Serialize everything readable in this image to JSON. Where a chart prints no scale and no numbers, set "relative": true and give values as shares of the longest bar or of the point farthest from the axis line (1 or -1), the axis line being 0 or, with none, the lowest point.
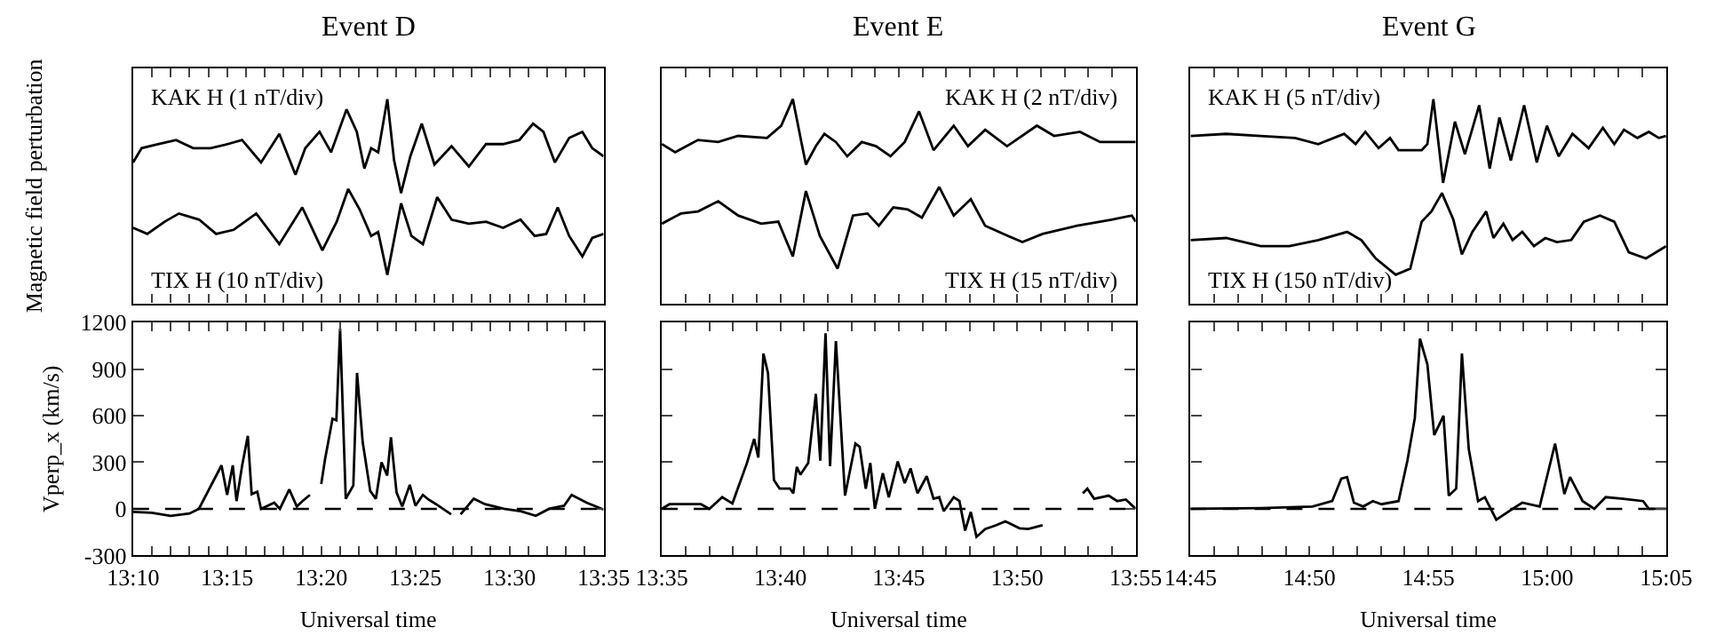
{
  "chart_data": [
    {
      "type": "line",
      "title": "Event D",
      "ylabel": "Magnetic field perturbation",
      "relative": true,
      "tick_labels": false,
      "xlim": [
        13.1667,
        13.5833
      ],
      "xticks": [
        {
          "value": 13.1667,
          "label": null
        },
        {
          "value": 13.1833,
          "label": null
        },
        {
          "value": 13.2,
          "label": null
        },
        {
          "value": 13.2167,
          "label": null
        },
        {
          "value": 13.2333,
          "label": null
        },
        {
          "value": 13.25,
          "label": null
        },
        {
          "value": 13.2667,
          "label": null
        },
        {
          "value": 13.2833,
          "label": null
        },
        {
          "value": 13.3,
          "label": null
        },
        {
          "value": 13.3167,
          "label": null
        },
        {
          "value": 13.3333,
          "label": null
        },
        {
          "value": 13.35,
          "label": null
        },
        {
          "value": 13.3667,
          "label": null
        },
        {
          "value": 13.3833,
          "label": null
        },
        {
          "value": 13.4,
          "label": null
        },
        {
          "value": 13.4167,
          "label": null
        },
        {
          "value": 13.4333,
          "label": null
        },
        {
          "value": 13.45,
          "label": null
        },
        {
          "value": 13.4667,
          "label": null
        },
        {
          "value": 13.4833,
          "label": null
        },
        {
          "value": 13.5,
          "label": null
        },
        {
          "value": 13.5167,
          "label": null
        },
        {
          "value": 13.5333,
          "label": null
        },
        {
          "value": 13.55,
          "label": null
        },
        {
          "value": 13.5667,
          "label": null
        },
        {
          "value": 13.5833,
          "label": null
        }
      ],
      "series": [
        {
          "name": "KAK H (1 nT/div)",
          "color": "#000000",
          "x": [
            13.1667,
            13.1743,
            13.1895,
            13.2048,
            13.22,
            13.2353,
            13.2505,
            13.2632,
            13.28,
            13.2962,
            13.3105,
            13.3192,
            13.3318,
            13.342,
            13.3557,
            13.3648,
            13.3715,
            13.3775,
            13.3837,
            13.3918,
            13.3978,
            13.404,
            13.4122,
            13.4223,
            13.4335,
            13.4487,
            13.464,
            13.4792,
            13.4943,
            13.5087,
            13.5208,
            13.53,
            13.5402,
            13.5528,
            13.5645,
            13.5732,
            13.5833
          ],
          "values": [
            0.69,
            0.76,
            0.78,
            0.8,
            0.76,
            0.76,
            0.78,
            0.8,
            0.69,
            0.83,
            0.63,
            0.76,
            0.84,
            0.74,
            0.95,
            0.84,
            0.66,
            0.76,
            0.74,
            1.0,
            0.7,
            0.54,
            0.72,
            0.88,
            0.68,
            0.77,
            0.67,
            0.78,
            0.78,
            0.8,
            0.88,
            0.84,
            0.69,
            0.81,
            0.84,
            0.76,
            0.72
          ]
        },
        {
          "name": "TIX H (10 nT/div)",
          "color": "#000000",
          "x": [
            13.1667,
            13.1793,
            13.1947,
            13.2073,
            13.2252,
            13.2403,
            13.2557,
            13.2758,
            13.2962,
            13.3165,
            13.3343,
            13.347,
            13.3572,
            13.3673,
            13.3775,
            13.3837,
            13.3918,
            13.404,
            13.4132,
            13.4233,
            13.436,
            13.4487,
            13.464,
            13.4792,
            13.4943,
            13.5097,
            13.5223,
            13.5325,
            13.5427,
            13.5528,
            13.5645,
            13.5732,
            13.5833
          ],
          "values": [
            0.37,
            0.34,
            0.4,
            0.44,
            0.41,
            0.34,
            0.36,
            0.44,
            0.29,
            0.47,
            0.26,
            0.4,
            0.56,
            0.46,
            0.33,
            0.35,
            0.14,
            0.49,
            0.33,
            0.29,
            0.52,
            0.41,
            0.39,
            0.4,
            0.37,
            0.41,
            0.33,
            0.34,
            0.47,
            0.33,
            0.23,
            0.32,
            0.34
          ]
        }
      ]
    },
    {
      "type": "line",
      "title": "Event E",
      "relative": true,
      "tick_labels": false,
      "xlim": [
        13.5833,
        13.9167
      ],
      "xticks": [
        {
          "value": 13.5833,
          "label": null
        },
        {
          "value": 13.6,
          "label": null
        },
        {
          "value": 13.6167,
          "label": null
        },
        {
          "value": 13.6333,
          "label": null
        },
        {
          "value": 13.65,
          "label": null
        },
        {
          "value": 13.6667,
          "label": null
        },
        {
          "value": 13.6833,
          "label": null
        },
        {
          "value": 13.7,
          "label": null
        },
        {
          "value": 13.7167,
          "label": null
        },
        {
          "value": 13.7333,
          "label": null
        },
        {
          "value": 13.75,
          "label": null
        },
        {
          "value": 13.7667,
          "label": null
        },
        {
          "value": 13.7833,
          "label": null
        },
        {
          "value": 13.8,
          "label": null
        },
        {
          "value": 13.8167,
          "label": null
        },
        {
          "value": 13.8333,
          "label": null
        },
        {
          "value": 13.85,
          "label": null
        },
        {
          "value": 13.8667,
          "label": null
        },
        {
          "value": 13.8833,
          "label": null
        },
        {
          "value": 13.9,
          "label": null
        },
        {
          "value": 13.9167,
          "label": null
        }
      ],
      "series": [
        {
          "name": "KAK H (2 nT/div)",
          "color": "#000000",
          "x": [
            13.5833,
            13.5927,
            13.6088,
            13.623,
            13.637,
            13.6573,
            13.6673,
            13.6755,
            13.6815,
            13.6847,
            13.6917,
            13.6977,
            13.7058,
            13.7138,
            13.724,
            13.734,
            13.7442,
            13.7542,
            13.7643,
            13.7745,
            13.7887,
            13.7987,
            13.8108,
            13.8262,
            13.8472,
            13.8593,
            13.8775,
            13.8917,
            13.9167
          ],
          "values": [
            0.78,
            0.74,
            0.8,
            0.79,
            0.82,
            0.81,
            0.87,
            1.0,
            0.79,
            0.68,
            0.77,
            0.83,
            0.79,
            0.72,
            0.79,
            0.77,
            0.72,
            0.79,
            0.94,
            0.75,
            0.87,
            0.77,
            0.85,
            0.77,
            0.87,
            0.82,
            0.84,
            0.79,
            0.79
          ]
        },
        {
          "name": "TIX H (15 nT/div)",
          "color": "#000000",
          "x": [
            13.5833,
            13.5967,
            13.6088,
            13.623,
            13.637,
            13.6532,
            13.6653,
            13.6755,
            13.6847,
            13.6945,
            13.707,
            13.7178,
            13.728,
            13.736,
            13.7462,
            13.7563,
            13.7663,
            13.7785,
            13.7887,
            13.8007,
            13.8108,
            13.827,
            13.837,
            13.8512,
            13.8755,
            13.8997,
            13.914,
            13.9167
          ],
          "values": [
            0.39,
            0.44,
            0.45,
            0.5,
            0.43,
            0.39,
            0.4,
            0.23,
            0.55,
            0.33,
            0.17,
            0.43,
            0.44,
            0.38,
            0.47,
            0.46,
            0.42,
            0.57,
            0.43,
            0.51,
            0.38,
            0.33,
            0.3,
            0.34,
            0.38,
            0.41,
            0.43,
            0.4
          ]
        }
      ]
    },
    {
      "type": "line",
      "title": "Event G",
      "relative": true,
      "tick_labels": false,
      "xlim": [
        14.75,
        15.0833
      ],
      "xticks": [
        {
          "value": 14.75,
          "label": null
        },
        {
          "value": 14.7667,
          "label": null
        },
        {
          "value": 14.7833,
          "label": null
        },
        {
          "value": 14.8,
          "label": null
        },
        {
          "value": 14.8167,
          "label": null
        },
        {
          "value": 14.8333,
          "label": null
        },
        {
          "value": 14.85,
          "label": null
        },
        {
          "value": 14.8667,
          "label": null
        },
        {
          "value": 14.8833,
          "label": null
        },
        {
          "value": 14.9,
          "label": null
        },
        {
          "value": 14.9167,
          "label": null
        },
        {
          "value": 14.9333,
          "label": null
        },
        {
          "value": 14.95,
          "label": null
        },
        {
          "value": 14.9667,
          "label": null
        },
        {
          "value": 14.9833,
          "label": null
        },
        {
          "value": 15,
          "label": null
        },
        {
          "value": 15.0167,
          "label": null
        },
        {
          "value": 15.0333,
          "label": null
        },
        {
          "value": 15.05,
          "label": null
        },
        {
          "value": 15.0667,
          "label": null
        },
        {
          "value": 15.0833,
          "label": null
        }
      ],
      "series": [
        {
          "name": "KAK H (5 nT/div)",
          "color": "#000000",
          "x": [
            14.75,
            14.775,
            14.7992,
            14.8233,
            14.8395,
            14.8577,
            14.8657,
            14.8725,
            14.8818,
            14.8898,
            14.8958,
            14.912,
            14.916,
            14.9202,
            14.927,
            14.9353,
            14.9423,
            14.9523,
            14.9597,
            14.9665,
            14.9745,
            14.9838,
            14.9927,
            14.9998,
            15.008,
            15.0177,
            15.029,
            15.039,
            15.047,
            15.0538,
            15.0632,
            15.0712,
            15.0782,
            15.0833
          ],
          "values": [
            0.82,
            0.83,
            0.82,
            0.81,
            0.78,
            0.83,
            0.78,
            0.84,
            0.76,
            0.81,
            0.75,
            0.75,
            0.78,
            1.0,
            0.59,
            0.89,
            0.73,
            0.97,
            0.66,
            0.91,
            0.7,
            0.97,
            0.69,
            0.87,
            0.72,
            0.83,
            0.76,
            0.86,
            0.78,
            0.85,
            0.81,
            0.84,
            0.81,
            0.82
          ]
        },
        {
          "name": "TIX H (150 nT/div)",
          "color": "#000000",
          "x": [
            14.75,
            14.775,
            14.7992,
            14.8193,
            14.8395,
            14.8597,
            14.8697,
            14.8798,
            14.8938,
            14.904,
            14.912,
            14.9188,
            14.9262,
            14.9342,
            14.9402,
            14.9475,
            14.9572,
            14.9623,
            14.9693,
            14.9757,
            14.9825,
            14.9907,
            14.9987,
            15.0068,
            15.0168,
            15.0257,
            15.037,
            15.047,
            15.0572,
            15.0692,
            15.0833
          ],
          "values": [
            0.31,
            0.32,
            0.28,
            0.28,
            0.31,
            0.35,
            0.31,
            0.22,
            0.14,
            0.17,
            0.4,
            0.45,
            0.54,
            0.41,
            0.24,
            0.35,
            0.45,
            0.32,
            0.39,
            0.31,
            0.35,
            0.28,
            0.32,
            0.3,
            0.31,
            0.4,
            0.43,
            0.4,
            0.25,
            0.22,
            0.28
          ]
        }
      ]
    },
    {
      "type": "line",
      "xlabel": "Universal time",
      "ylabel": "Vperp_x (km/s)",
      "xlim": [
        13.1667,
        13.5833
      ],
      "ylim": [
        -300,
        1200
      ],
      "yticks": [
        -300,
        0,
        300,
        600,
        900,
        1200
      ],
      "xticks": [
        {
          "value": 13.1667,
          "label": "13:10"
        },
        {
          "value": 13.1833,
          "label": null
        },
        {
          "value": 13.2,
          "label": null
        },
        {
          "value": 13.2167,
          "label": null
        },
        {
          "value": 13.2333,
          "label": null
        },
        {
          "value": 13.25,
          "label": "13:15"
        },
        {
          "value": 13.2667,
          "label": null
        },
        {
          "value": 13.2833,
          "label": null
        },
        {
          "value": 13.3,
          "label": null
        },
        {
          "value": 13.3167,
          "label": null
        },
        {
          "value": 13.3333,
          "label": "13:20"
        },
        {
          "value": 13.35,
          "label": null
        },
        {
          "value": 13.3667,
          "label": null
        },
        {
          "value": 13.3833,
          "label": null
        },
        {
          "value": 13.4,
          "label": null
        },
        {
          "value": 13.4167,
          "label": "13:25"
        },
        {
          "value": 13.4333,
          "label": null
        },
        {
          "value": 13.45,
          "label": null
        },
        {
          "value": 13.4667,
          "label": null
        },
        {
          "value": 13.4833,
          "label": null
        },
        {
          "value": 13.5,
          "label": "13:30"
        },
        {
          "value": 13.5167,
          "label": null
        },
        {
          "value": 13.5333,
          "label": null
        },
        {
          "value": 13.55,
          "label": null
        },
        {
          "value": 13.5667,
          "label": null
        },
        {
          "value": 13.5833,
          "label": "13:35"
        }
      ],
      "ref_lines": [
        {
          "axis": "y",
          "value": 0,
          "line_style": "dashed",
          "color": "#000000"
        }
      ],
      "series": [
        {
          "color": "#000000",
          "x": [
            13.1667,
            13.1833,
            13.2,
            13.2167,
            13.225,
            13.245,
            13.25,
            13.255,
            13.2583,
            13.2633,
            13.2683,
            13.2717,
            13.2767,
            13.28,
            13.2917,
            13.2967,
            13.305,
            13.3117,
            13.3167,
            13.3233,
            13.3283,
            13.3333,
            13.3367,
            13.3433,
            13.3467,
            13.35,
            13.355,
            13.3617,
            13.365,
            13.37,
            13.3767,
            13.3817,
            13.3867,
            13.3917,
            13.395,
            13.4,
            13.405,
            13.4117,
            13.4167,
            13.4233,
            13.4283,
            13.435,
            13.4483,
            13.4517,
            13.4567,
            13.4683,
            13.4783,
            13.495,
            13.51,
            13.5233,
            13.535,
            13.5483,
            13.555,
            13.5683,
            13.5833
          ],
          "values": [
            -20,
            -25,
            -45,
            -30,
            0,
            280,
            90,
            280,
            50,
            280,
            470,
            95,
            110,
            0,
            40,
            0,
            125,
            15,
            50,
            90,
            null,
            160,
            320,
            580,
            570,
            1160,
            65,
            150,
            875,
            430,
            115,
            65,
            300,
            215,
            460,
            105,
            15,
            155,
            20,
            90,
            60,
            30,
            -35,
            null,
            -35,
            65,
            30,
            0,
            -15,
            -45,
            0,
            20,
            90,
            40,
            -5
          ]
        }
      ]
    },
    {
      "type": "line",
      "xlabel": "Universal time",
      "tick_labels": "x",
      "xlim": [
        13.5833,
        13.9167
      ],
      "ylim": [
        -300,
        1200
      ],
      "yticks": [
        -300,
        0,
        300,
        600,
        900,
        1200
      ],
      "xticks": [
        {
          "value": 13.5833,
          "label": "13:35"
        },
        {
          "value": 13.6,
          "label": null
        },
        {
          "value": 13.6167,
          "label": null
        },
        {
          "value": 13.6333,
          "label": null
        },
        {
          "value": 13.65,
          "label": null
        },
        {
          "value": 13.6667,
          "label": "13:40"
        },
        {
          "value": 13.6833,
          "label": null
        },
        {
          "value": 13.7,
          "label": null
        },
        {
          "value": 13.7167,
          "label": null
        },
        {
          "value": 13.7333,
          "label": null
        },
        {
          "value": 13.75,
          "label": "13:45"
        },
        {
          "value": 13.7667,
          "label": null
        },
        {
          "value": 13.7833,
          "label": null
        },
        {
          "value": 13.8,
          "label": null
        },
        {
          "value": 13.8167,
          "label": null
        },
        {
          "value": 13.8333,
          "label": "13:50"
        },
        {
          "value": 13.85,
          "label": null
        },
        {
          "value": 13.8667,
          "label": null
        },
        {
          "value": 13.8833,
          "label": null
        },
        {
          "value": 13.9,
          "label": null
        },
        {
          "value": 13.9167,
          "label": "13:55"
        }
      ],
      "ref_lines": [
        {
          "axis": "y",
          "value": 0,
          "line_style": "dashed",
          "color": "#000000"
        }
      ],
      "series": [
        {
          "color": "#000000",
          "x": [
            13.5833,
            13.5887,
            13.5987,
            13.6108,
            13.6168,
            13.6258,
            13.633,
            13.6432,
            13.6483,
            13.6512,
            13.6548,
            13.658,
            13.6622,
            13.6662,
            13.6735,
            13.6758,
            13.6783,
            13.6808,
            13.6863,
            13.6917,
            13.6948,
            13.6985,
            13.7017,
            13.7058,
            13.7122,
            13.7195,
            13.7225,
            13.7268,
            13.73,
            13.7332,
            13.7388,
            13.743,
            13.7493,
            13.7542,
            13.7583,
            13.7632,
            13.7697,
            13.7745,
            13.7785,
            13.7817,
            13.7887,
            13.7927,
            13.7967,
            13.8007,
            13.8047,
            13.8108,
            13.8188,
            13.825,
            13.835,
            13.8412,
            13.8512,
            13.8583,
            13.8795,
            13.8827,
            13.8875,
            13.8977,
            13.9037,
            13.9098,
            13.9167
          ],
          "values": [
            0,
            30,
            30,
            30,
            0,
            75,
            35,
            295,
            450,
            330,
            1000,
            875,
            185,
            130,
            130,
            100,
            270,
            220,
            295,
            740,
            310,
            1130,
            275,
            1080,
            85,
            420,
            400,
            130,
            295,
            0,
            230,
            75,
            305,
            165,
            260,
            100,
            210,
            65,
            75,
            -15,
            75,
            50,
            -140,
            -20,
            -180,
            -130,
            -105,
            -80,
            -125,
            -130,
            -105,
            null,
            100,
            130,
            65,
            85,
            50,
            60,
            0
          ]
        }
      ]
    },
    {
      "type": "line",
      "xlabel": "Universal time",
      "tick_labels": "x",
      "xlim": [
        14.75,
        15.0833
      ],
      "ylim": [
        -300,
        1200
      ],
      "yticks": [
        -300,
        0,
        300,
        600,
        900,
        1200
      ],
      "xticks": [
        {
          "value": 14.75,
          "label": "14:45"
        },
        {
          "value": 14.7667,
          "label": null
        },
        {
          "value": 14.7833,
          "label": null
        },
        {
          "value": 14.8,
          "label": null
        },
        {
          "value": 14.8167,
          "label": null
        },
        {
          "value": 14.8333,
          "label": "14:50"
        },
        {
          "value": 14.85,
          "label": null
        },
        {
          "value": 14.8667,
          "label": null
        },
        {
          "value": 14.8833,
          "label": null
        },
        {
          "value": 14.9,
          "label": null
        },
        {
          "value": 14.9167,
          "label": "14:55"
        },
        {
          "value": 14.9333,
          "label": null
        },
        {
          "value": 14.95,
          "label": null
        },
        {
          "value": 14.9667,
          "label": null
        },
        {
          "value": 14.9833,
          "label": null
        },
        {
          "value": 15,
          "label": "15:00"
        },
        {
          "value": 15.0167,
          "label": null
        },
        {
          "value": 15.0333,
          "label": null
        },
        {
          "value": 15.05,
          "label": null
        },
        {
          "value": 15.0667,
          "label": null
        },
        {
          "value": 15.0833,
          "label": "15:05"
        }
      ],
      "ref_lines": [
        {
          "axis": "y",
          "value": 0,
          "line_style": "dashed",
          "color": "#000000"
        }
      ],
      "series": [
        {
          "color": "#000000",
          "x": [
            14.75,
            14.7992,
            14.8355,
            14.8493,
            14.8557,
            14.8597,
            14.8645,
            14.871,
            14.8778,
            14.8838,
            14.8958,
            14.902,
            14.9072,
            14.9108,
            14.916,
            14.9208,
            14.9273,
            14.931,
            14.9362,
            14.9402,
            14.945,
            14.9515,
            14.9563,
            14.9643,
            14.9765,
            14.9825,
            14.9947,
            15.0007,
            15.0055,
            15.012,
            15.016,
            15.0248,
            15.033,
            15.041,
            15.0532,
            15.0672,
            15.0712,
            15.0833
          ],
          "values": [
            0,
            5,
            15,
            50,
            195,
            205,
            40,
            15,
            50,
            30,
            50,
            310,
            585,
            1095,
            930,
            475,
            600,
            85,
            130,
            1000,
            385,
            50,
            75,
            -70,
            5,
            40,
            15,
            240,
            420,
            95,
            205,
            50,
            0,
            75,
            65,
            50,
            0,
            0
          ]
        }
      ]
    }
  ]
}
